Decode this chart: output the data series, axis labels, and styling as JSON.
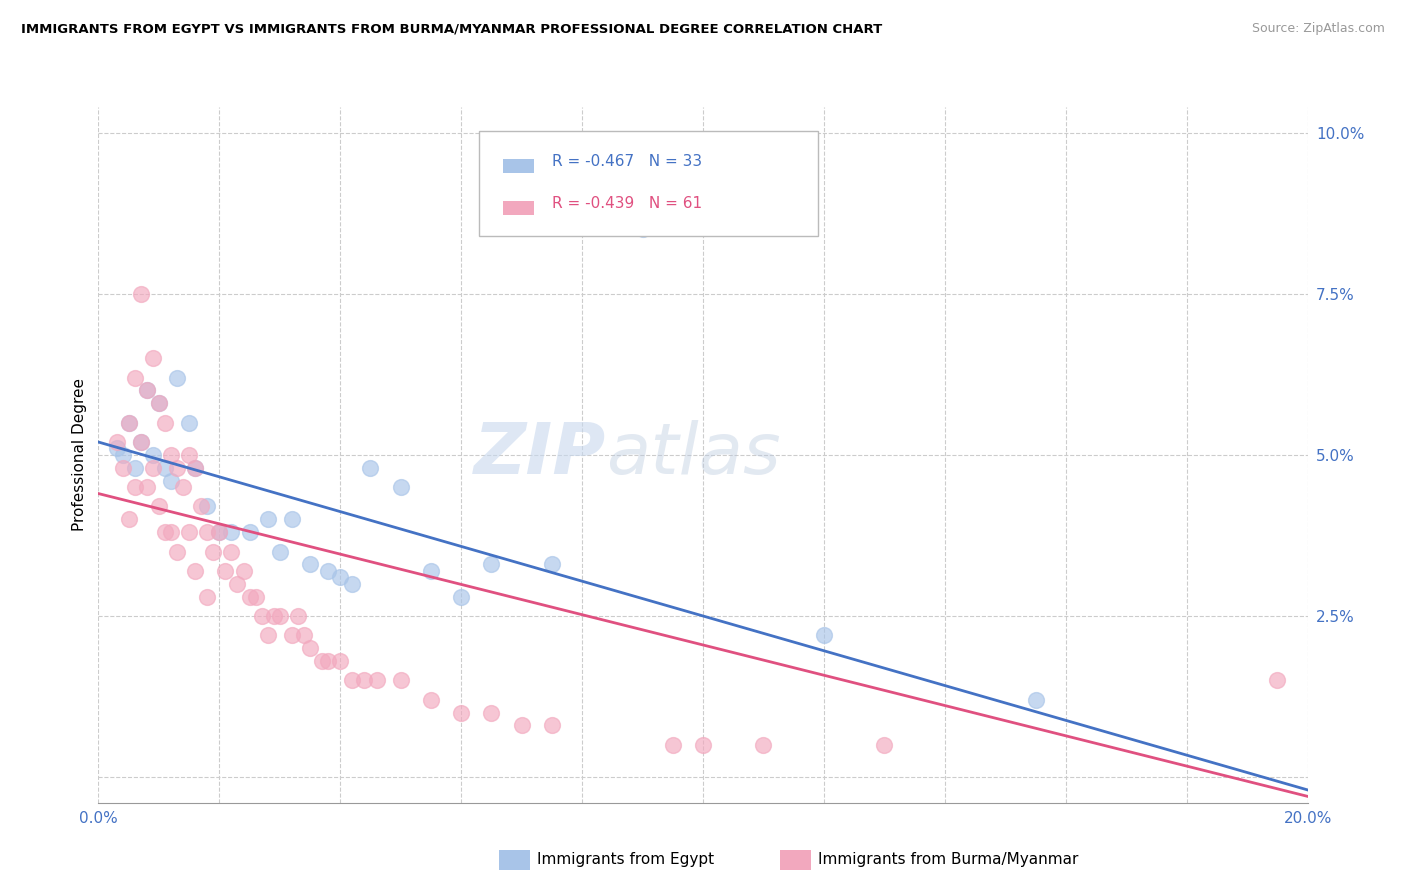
{
  "title": "IMMIGRANTS FROM EGYPT VS IMMIGRANTS FROM BURMA/MYANMAR PROFESSIONAL DEGREE CORRELATION CHART",
  "source": "Source: ZipAtlas.com",
  "ylabel": "Professional Degree",
  "legend1_label": "R = -0.467   N = 33",
  "legend2_label": "R = -0.439   N = 61",
  "series1_color": "#a8c4e8",
  "series2_color": "#f2a8be",
  "line1_color": "#4472c4",
  "line2_color": "#e05080",
  "watermark_zip": "ZIP",
  "watermark_atlas": "atlas",
  "legend_label1": "Immigrants from Egypt",
  "legend_label2": "Immigrants from Burma/Myanmar",
  "xmin": 0.0,
  "xmax": 0.2,
  "ymin": -0.004,
  "ymax": 0.104,
  "yticks": [
    0.0,
    0.025,
    0.05,
    0.075,
    0.1
  ],
  "xticks": [
    0.0,
    0.02,
    0.04,
    0.06,
    0.08,
    0.1,
    0.12,
    0.14,
    0.16,
    0.18,
    0.2
  ],
  "egypt_x": [
    0.003,
    0.004,
    0.005,
    0.006,
    0.007,
    0.008,
    0.009,
    0.01,
    0.011,
    0.012,
    0.013,
    0.015,
    0.016,
    0.018,
    0.02,
    0.022,
    0.025,
    0.028,
    0.03,
    0.032,
    0.035,
    0.038,
    0.04,
    0.042,
    0.045,
    0.05,
    0.055,
    0.06,
    0.065,
    0.075,
    0.09,
    0.12,
    0.155
  ],
  "egypt_y": [
    0.051,
    0.05,
    0.055,
    0.048,
    0.052,
    0.06,
    0.05,
    0.058,
    0.048,
    0.046,
    0.062,
    0.055,
    0.048,
    0.042,
    0.038,
    0.038,
    0.038,
    0.04,
    0.035,
    0.04,
    0.033,
    0.032,
    0.031,
    0.03,
    0.048,
    0.045,
    0.032,
    0.028,
    0.033,
    0.033,
    0.085,
    0.022,
    0.012
  ],
  "burma_x": [
    0.003,
    0.004,
    0.005,
    0.005,
    0.006,
    0.006,
    0.007,
    0.007,
    0.008,
    0.008,
    0.009,
    0.009,
    0.01,
    0.01,
    0.011,
    0.011,
    0.012,
    0.012,
    0.013,
    0.013,
    0.014,
    0.015,
    0.015,
    0.016,
    0.016,
    0.017,
    0.018,
    0.018,
    0.019,
    0.02,
    0.021,
    0.022,
    0.023,
    0.024,
    0.025,
    0.026,
    0.027,
    0.028,
    0.029,
    0.03,
    0.032,
    0.033,
    0.034,
    0.035,
    0.037,
    0.038,
    0.04,
    0.042,
    0.044,
    0.046,
    0.05,
    0.055,
    0.06,
    0.065,
    0.07,
    0.075,
    0.095,
    0.1,
    0.11,
    0.13,
    0.195
  ],
  "burma_y": [
    0.052,
    0.048,
    0.055,
    0.04,
    0.062,
    0.045,
    0.075,
    0.052,
    0.06,
    0.045,
    0.065,
    0.048,
    0.058,
    0.042,
    0.055,
    0.038,
    0.05,
    0.038,
    0.048,
    0.035,
    0.045,
    0.05,
    0.038,
    0.048,
    0.032,
    0.042,
    0.038,
    0.028,
    0.035,
    0.038,
    0.032,
    0.035,
    0.03,
    0.032,
    0.028,
    0.028,
    0.025,
    0.022,
    0.025,
    0.025,
    0.022,
    0.025,
    0.022,
    0.02,
    0.018,
    0.018,
    0.018,
    0.015,
    0.015,
    0.015,
    0.015,
    0.012,
    0.01,
    0.01,
    0.008,
    0.008,
    0.005,
    0.005,
    0.005,
    0.005,
    0.015
  ],
  "line1_x0": 0.0,
  "line1_y0": 0.052,
  "line1_x1": 0.2,
  "line1_y1": -0.002,
  "line2_x0": 0.0,
  "line2_y0": 0.044,
  "line2_x1": 0.2,
  "line2_y1": -0.003
}
